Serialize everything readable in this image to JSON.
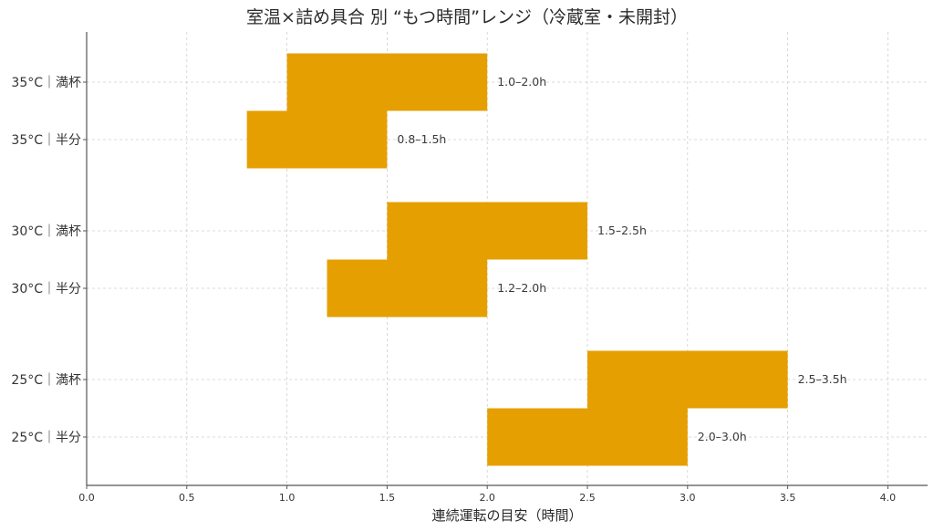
{
  "chart_data": {
    "type": "bar",
    "orientation": "horizontal-range",
    "title": "室温×詰め具合 別 “もつ時間”レンジ（冷蔵室・未開封）",
    "xlabel": "連続運転の目安（時間）",
    "ylabel": "",
    "xlim": [
      0,
      4.2
    ],
    "xticks": [
      0.0,
      0.5,
      1.0,
      1.5,
      2.0,
      2.5,
      3.0,
      3.5,
      4.0
    ],
    "xtick_labels": [
      "0.0",
      "0.5",
      "1.0",
      "1.5",
      "2.0",
      "2.5",
      "3.0",
      "3.5",
      "4.0"
    ],
    "grid": true,
    "legend": null,
    "bar_color": "#E69F00",
    "categories": [
      "35°C｜満杯",
      "35°C｜半分",
      "30°C｜満杯",
      "30°C｜半分",
      "25°C｜満杯",
      "25°C｜半分"
    ],
    "ranges": [
      {
        "category": "35°C｜満杯",
        "start": 1.0,
        "end": 2.0,
        "label": "1.0–2.0h"
      },
      {
        "category": "35°C｜半分",
        "start": 0.8,
        "end": 1.5,
        "label": "0.8–1.5h"
      },
      {
        "category": "30°C｜満杯",
        "start": 1.5,
        "end": 2.5,
        "label": "1.5–2.5h"
      },
      {
        "category": "30°C｜半分",
        "start": 1.2,
        "end": 2.0,
        "label": "1.2–2.0h"
      },
      {
        "category": "25°C｜満杯",
        "start": 2.5,
        "end": 3.5,
        "label": "2.5–3.5h"
      },
      {
        "category": "25°C｜半分",
        "start": 2.0,
        "end": 3.0,
        "label": "2.0–3.0h"
      }
    ]
  }
}
